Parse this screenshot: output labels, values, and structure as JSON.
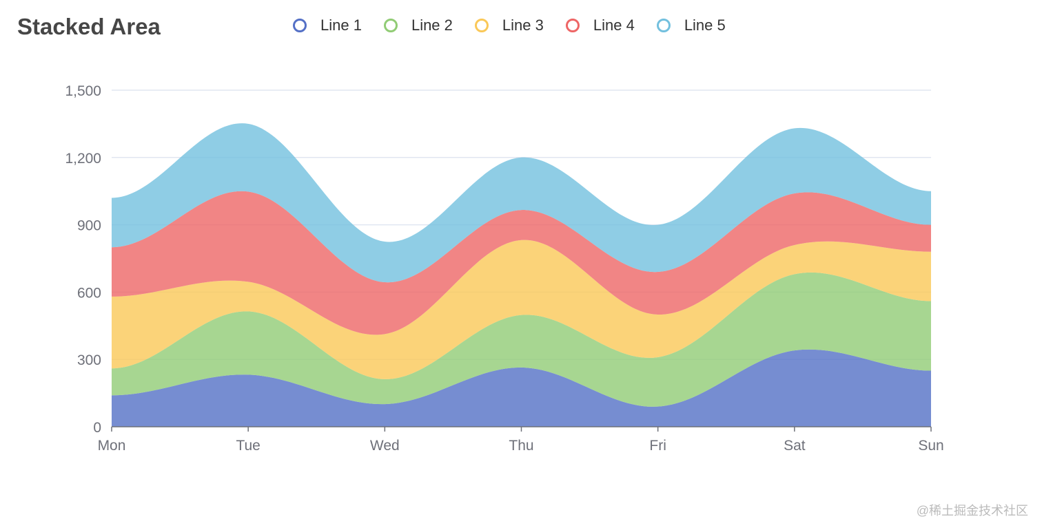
{
  "chart_data": {
    "type": "area",
    "stacked": true,
    "smooth": true,
    "title": "Stacked Area",
    "categories": [
      "Mon",
      "Tue",
      "Wed",
      "Thu",
      "Fri",
      "Sat",
      "Sun"
    ],
    "ylim": [
      0,
      1500
    ],
    "yticks": [
      "0",
      "300",
      "600",
      "900",
      "1,200",
      "1,500"
    ],
    "ytick_values": [
      0,
      300,
      600,
      900,
      1200,
      1500
    ],
    "grid": true,
    "legend_position": "top",
    "series": [
      {
        "name": "Line 1",
        "color": "#5470c6",
        "values": [
          140,
          232,
          101,
          264,
          90,
          340,
          250
        ]
      },
      {
        "name": "Line 2",
        "color": "#91cc75",
        "values": [
          120,
          282,
          111,
          234,
          220,
          340,
          310
        ]
      },
      {
        "name": "Line 3",
        "color": "#fac858",
        "values": [
          320,
          132,
          201,
          334,
          190,
          130,
          220
        ]
      },
      {
        "name": "Line 4",
        "color": "#ee6666",
        "values": [
          220,
          402,
          231,
          134,
          190,
          230,
          120
        ]
      },
      {
        "name": "Line 5",
        "color": "#73c0de",
        "values": [
          220,
          302,
          181,
          234,
          210,
          290,
          150
        ]
      }
    ]
  },
  "watermark": "@稀土掘金技术社区"
}
